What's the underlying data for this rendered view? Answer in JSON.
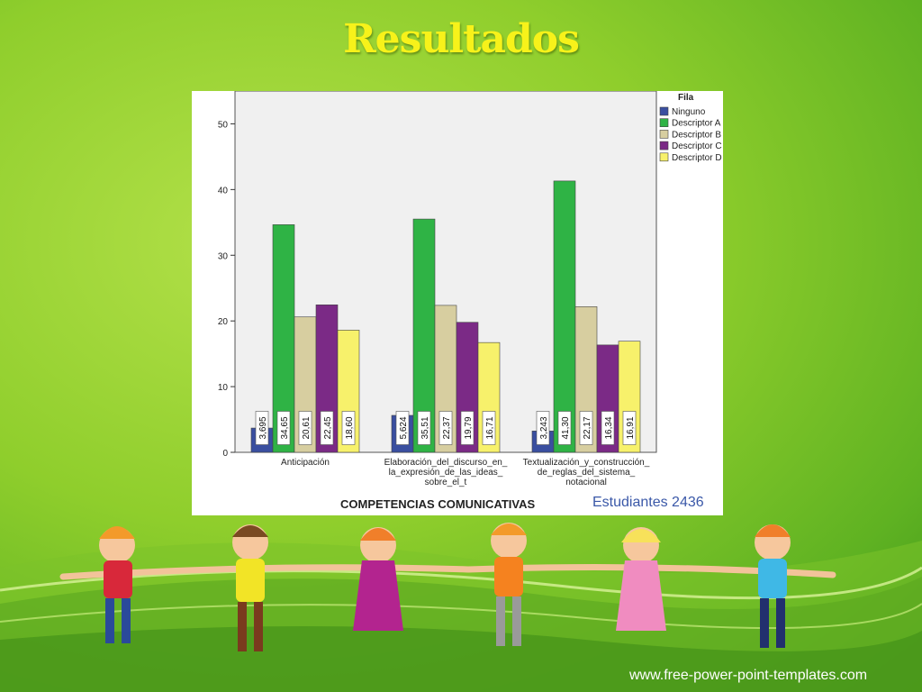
{
  "slide": {
    "title": "Resultados",
    "website": "www.free-power-point-templates.com"
  },
  "chart_data": {
    "type": "bar",
    "categories": [
      [
        "Anticipación"
      ],
      [
        "Elaboración_del_discurso_en_",
        "la_expresión_de_las_ideas_",
        "sobre_el_t"
      ],
      [
        "Textualización_y_construcción_",
        "de_reglas_del_sistema_",
        "notacional"
      ]
    ],
    "series": [
      {
        "name": "Ninguno",
        "color": "#3a4fa0",
        "values": [
          3.695,
          5.624,
          3.243
        ],
        "labels": [
          "3,695",
          "5,624",
          "3,243"
        ]
      },
      {
        "name": "Descriptor A",
        "color": "#2fb345",
        "values": [
          34.65,
          35.51,
          41.3
        ],
        "labels": [
          "34,65",
          "35,51",
          "41,30"
        ]
      },
      {
        "name": "Descriptor B",
        "color": "#d7cea0",
        "values": [
          20.61,
          22.37,
          22.17
        ],
        "labels": [
          "20,61",
          "22,37",
          "22,17"
        ]
      },
      {
        "name": "Descriptor C",
        "color": "#7b2a86",
        "values": [
          22.45,
          19.79,
          16.34
        ],
        "labels": [
          "22,45",
          "19,79",
          "16,34"
        ]
      },
      {
        "name": "Descriptor D",
        "color": "#f7f16b",
        "values": [
          18.6,
          16.71,
          16.91
        ],
        "labels": [
          "18,60",
          "16,71",
          "16,91"
        ]
      }
    ],
    "xlabel": "COMPETENCIAS COMUNICATIVAS",
    "ylabel": "",
    "ylim": [
      0,
      55
    ],
    "yticks": [
      0,
      10,
      20,
      30,
      40,
      50
    ],
    "legend_title": "Fila",
    "legend_position": "right",
    "plot_background": "#f0f0f0",
    "grid": false,
    "footer_note": "Estudiantes 2436"
  }
}
